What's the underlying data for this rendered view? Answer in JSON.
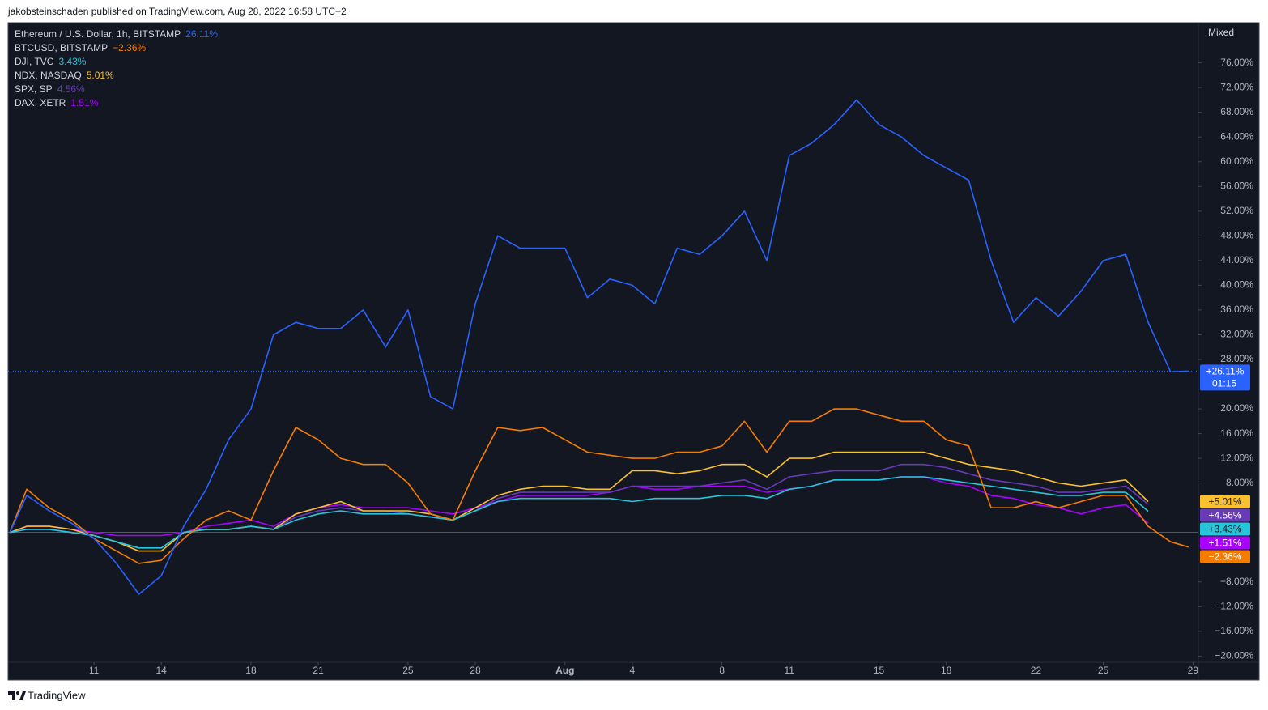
{
  "header": "jakobsteinschaden published on TradingView.com, Aug 28, 2022 16:58 UTC+2",
  "footer": "TradingView",
  "chart_data": {
    "type": "line",
    "scale_label": "Mixed",
    "x": [
      7.25,
      8,
      9,
      10,
      11,
      12,
      13,
      14,
      15,
      16,
      17,
      18,
      19,
      20,
      21,
      22,
      23,
      24,
      25,
      26,
      27,
      28,
      29,
      30,
      31,
      32,
      33,
      34,
      35,
      36,
      37,
      38,
      39,
      40,
      41,
      42,
      43,
      44,
      45,
      46,
      47,
      48,
      49,
      50,
      51,
      52,
      53,
      54,
      55,
      56,
      57,
      58,
      59,
      59.8
    ],
    "xlim": [
      7.17,
      60.24
    ],
    "xticks": [
      11,
      14,
      18,
      21,
      25,
      28,
      {
        "value": 32,
        "label": "Aug"
      },
      {
        "value": 35,
        "label": "4"
      },
      {
        "value": 39,
        "label": "8"
      },
      {
        "value": 42,
        "label": "11"
      },
      {
        "value": 46,
        "label": "15"
      },
      {
        "value": 49,
        "label": "18"
      },
      {
        "value": 53,
        "label": "22"
      },
      {
        "value": 56,
        "label": "25"
      },
      {
        "value": 60,
        "label": "29"
      }
    ],
    "ylim": [
      -21,
      82.5
    ],
    "yticks": [
      {
        "value": 76,
        "label": "76.00%"
      },
      {
        "value": 72,
        "label": "72.00%"
      },
      {
        "value": 68,
        "label": "68.00%"
      },
      {
        "value": 64,
        "label": "64.00%"
      },
      {
        "value": 60,
        "label": "60.00%"
      },
      {
        "value": 56,
        "label": "56.00%"
      },
      {
        "value": 52,
        "label": "52.00%"
      },
      {
        "value": 48,
        "label": "48.00%"
      },
      {
        "value": 44,
        "label": "44.00%"
      },
      {
        "value": 40,
        "label": "40.00%"
      },
      {
        "value": 36,
        "label": "36.00%"
      },
      {
        "value": 32,
        "label": "32.00%"
      },
      {
        "value": 28,
        "label": "28.00%"
      },
      {
        "value": 20,
        "label": "20.00%"
      },
      {
        "value": 16,
        "label": "16.00%"
      },
      {
        "value": 12,
        "label": "12.00%"
      },
      {
        "value": 8,
        "label": "8.00%"
      },
      {
        "value": -8,
        "label": "−8.00%"
      },
      {
        "value": -12,
        "label": "−12.00%"
      },
      {
        "value": -16,
        "label": "−16.00%"
      },
      {
        "value": -20,
        "label": "−20.00%"
      }
    ],
    "grid": false,
    "series": [
      {
        "name": "Ethereum / U.S. Dollar, 1h, BITSTAMP",
        "color": "#2962ff",
        "legend_value": "26.11%",
        "price_label": "+26.11%",
        "countdown": "01:15",
        "values": [
          0,
          6,
          3.5,
          1.5,
          -1,
          -5,
          -10,
          -7,
          1,
          7,
          15,
          20,
          32,
          34,
          33,
          33,
          36,
          30,
          36,
          22,
          20,
          37,
          48,
          46,
          46,
          46,
          38,
          41,
          40,
          37,
          46,
          45,
          48,
          52,
          44,
          61,
          63,
          66,
          70,
          66,
          64,
          61,
          59,
          57,
          44,
          34,
          38,
          35,
          39,
          44,
          45,
          34,
          26,
          26.11
        ]
      },
      {
        "name": "BTCUSD, BITSTAMP",
        "color": "#f57c00",
        "legend_value": "−2.36%",
        "price_label": "−2.36%",
        "values": [
          0,
          7,
          4,
          2,
          -1,
          -3,
          -5,
          -4.5,
          -1,
          2,
          3.5,
          2,
          10,
          17,
          15,
          12,
          11,
          11,
          8,
          3,
          2,
          10,
          17,
          16.5,
          17,
          15,
          13,
          12.5,
          12,
          12,
          13,
          13,
          14,
          18,
          13,
          18,
          18,
          20,
          20,
          19,
          18,
          18,
          15,
          14,
          4,
          4,
          5,
          4,
          5,
          6,
          6,
          1,
          -1.5,
          -2.36
        ]
      },
      {
        "name": "DJI, TVC",
        "color": "#26c6da",
        "legend_value": "3.43%",
        "price_label": "+3.43%",
        "values": [
          0,
          0.5,
          0.5,
          0,
          -0.5,
          -1.5,
          -2.5,
          -2.5,
          0,
          0.5,
          0.5,
          1,
          0.5,
          2,
          3,
          3.5,
          3,
          3,
          3,
          2.5,
          2,
          3.5,
          5,
          5.5,
          5.5,
          5.5,
          5.5,
          5.5,
          5,
          5.5,
          5.5,
          5.5,
          6,
          6,
          5.5,
          7,
          7.5,
          8.5,
          8.5,
          8.5,
          9,
          9,
          8.5,
          8,
          7.5,
          7,
          6.5,
          6,
          6,
          6.5,
          6.5,
          3.43,
          null,
          null
        ]
      },
      {
        "name": "NDX, NASDAQ",
        "color": "#fbc02d",
        "legend_value": "5.01%",
        "price_label": "+5.01%",
        "values": [
          0,
          1,
          1,
          0.5,
          -0.5,
          -1.5,
          -3,
          -3,
          0,
          0.5,
          0.5,
          1,
          0.5,
          3,
          4,
          5,
          3.5,
          3.5,
          3.5,
          3,
          2,
          4,
          6,
          7,
          7.5,
          7.5,
          7,
          7,
          10,
          10,
          9.5,
          10,
          11,
          11,
          9,
          12,
          12,
          13,
          13,
          13,
          13,
          13,
          12,
          11,
          10.5,
          10,
          9,
          8,
          7.5,
          8,
          8.5,
          5.01,
          null,
          null
        ]
      },
      {
        "name": "SPX, SP",
        "color": "#673ab7",
        "legend_value": "4.56%",
        "price_label": "+4.56%",
        "values": [
          0,
          0.5,
          0.5,
          0,
          -0.5,
          -1.5,
          -2.5,
          -2.5,
          0,
          0.5,
          0.5,
          1,
          0.5,
          2.5,
          3.5,
          4,
          3.5,
          3.5,
          3,
          2.5,
          2,
          3.5,
          5.5,
          6.5,
          6.5,
          6.5,
          6.5,
          6.5,
          7.5,
          7.5,
          7.5,
          7.5,
          8,
          8.5,
          7,
          9,
          9.5,
          10,
          10,
          10,
          11,
          11,
          10.5,
          9.5,
          8.5,
          8,
          7.5,
          6.5,
          6.5,
          7,
          7.5,
          4.56,
          null,
          null
        ]
      },
      {
        "name": "DAX, XETR",
        "color": "#aa00ff",
        "legend_value": "1.51%",
        "price_label": "+1.51%",
        "values": [
          0,
          1,
          1,
          0.5,
          0,
          -0.5,
          -0.5,
          -0.5,
          0,
          1,
          1.5,
          2,
          1,
          3,
          4,
          4.5,
          4,
          4,
          4,
          3.5,
          3,
          4,
          5,
          6,
          6,
          6,
          6,
          6.5,
          7.5,
          7,
          7,
          7.5,
          7.5,
          7.5,
          6.5,
          7,
          7.5,
          8.5,
          8.5,
          8.5,
          9,
          9,
          8,
          7.5,
          6,
          5.5,
          4.5,
          4,
          3,
          4,
          4.5,
          1.51,
          null,
          null
        ]
      }
    ]
  }
}
